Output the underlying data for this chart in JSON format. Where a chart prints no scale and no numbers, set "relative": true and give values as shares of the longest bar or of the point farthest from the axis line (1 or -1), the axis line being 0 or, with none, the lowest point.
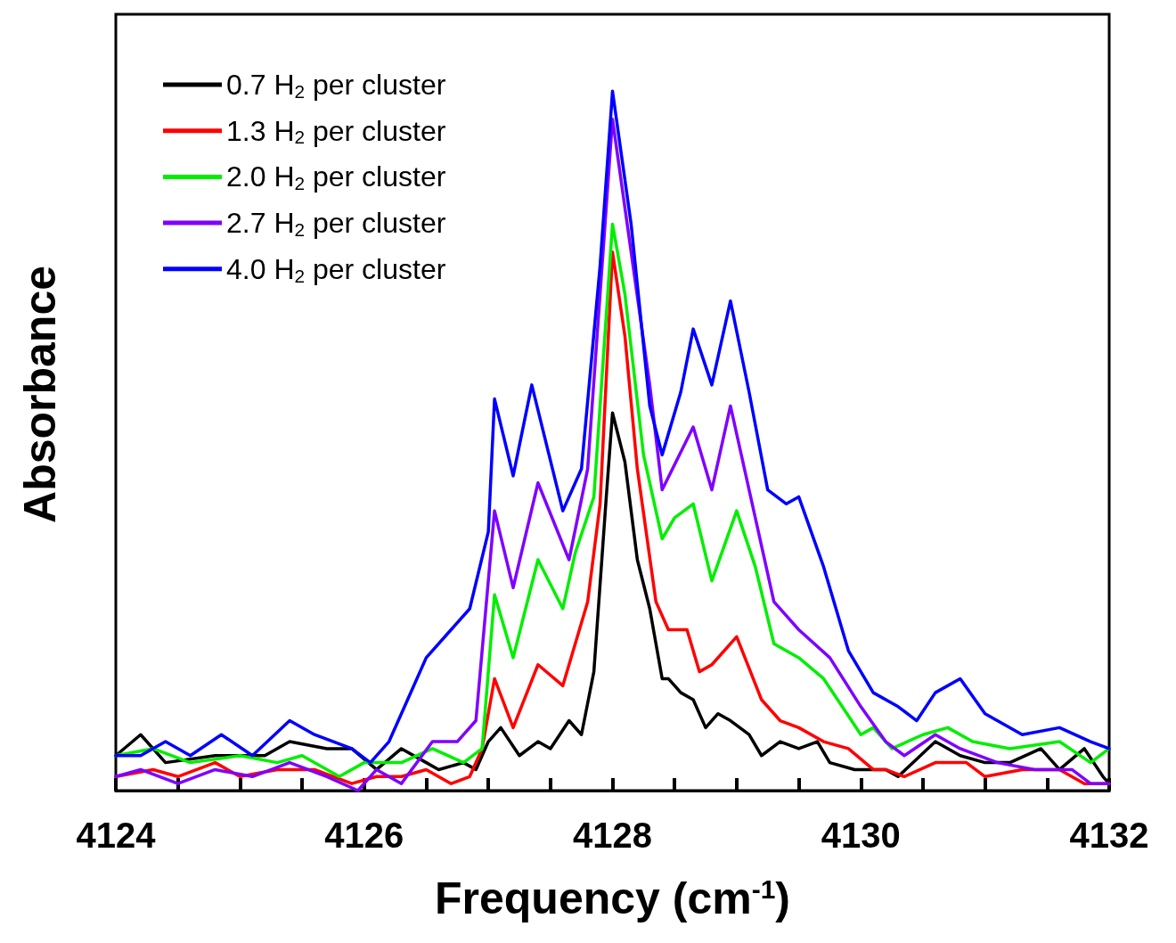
{
  "chart_data": {
    "type": "line",
    "relative": true,
    "xlabel": "Frequency (cm$^{-1}$)",
    "ylabel": "Absorbance",
    "xlim": [
      4124,
      4132
    ],
    "xticks": [
      4124,
      {
        "value": 4124.5,
        "label": null
      },
      {
        "value": 4125,
        "label": null
      },
      {
        "value": 4125.5,
        "label": null
      },
      4126,
      {
        "value": 4126.5,
        "label": null
      },
      {
        "value": 4127,
        "label": null
      },
      {
        "value": 4127.5,
        "label": null
      },
      4128,
      {
        "value": 4128.5,
        "label": null
      },
      {
        "value": 4129,
        "label": null
      },
      {
        "value": 4129.5,
        "label": null
      },
      4130,
      {
        "value": 4130.5,
        "label": null
      },
      {
        "value": 4131,
        "label": null
      },
      {
        "value": 4131.5,
        "label": null
      },
      4132
    ],
    "legend": "top left",
    "grid": false,
    "series": [
      {
        "name": "0.7 H$_{2}$ per cluster",
        "color": "#000000",
        "x": [
          4124,
          4124.2,
          4124.4,
          4124.8,
          4125.2,
          4125.4,
          4125.7,
          4125.9,
          4126.1,
          4126.3,
          4126.5,
          4126.6,
          4126.8,
          4126.9,
          4127.0,
          4127.1,
          4127.25,
          4127.4,
          4127.5,
          4127.65,
          4127.75,
          4127.85,
          4127.95,
          4128.0,
          4128.1,
          4128.2,
          4128.3,
          4128.4,
          4128.45,
          4128.55,
          4128.65,
          4128.75,
          4128.85,
          4128.95,
          4129.1,
          4129.2,
          4129.35,
          4129.5,
          4129.65,
          4129.75,
          4129.95,
          4130.2,
          4130.3,
          4130.6,
          4130.8,
          4131.0,
          4131.2,
          4131.45,
          4131.6,
          4131.8,
          4131.95,
          4132
        ],
        "values": [
          0.05,
          0.08,
          0.04,
          0.05,
          0.05,
          0.07,
          0.06,
          0.06,
          0.03,
          0.06,
          0.04,
          0.03,
          0.04,
          0.03,
          0.07,
          0.09,
          0.05,
          0.07,
          0.06,
          0.1,
          0.08,
          0.17,
          0.42,
          0.54,
          0.47,
          0.33,
          0.26,
          0.16,
          0.16,
          0.14,
          0.13,
          0.09,
          0.11,
          0.1,
          0.08,
          0.05,
          0.07,
          0.06,
          0.07,
          0.04,
          0.03,
          0.03,
          0.02,
          0.07,
          0.05,
          0.04,
          0.04,
          0.06,
          0.03,
          0.06,
          0.02,
          0.01
        ]
      },
      {
        "name": "1.3 H$_{2}$ per cluster",
        "color": "#ff0000",
        "x": [
          4124,
          4124.3,
          4124.5,
          4124.8,
          4125,
          4125.3,
          4125.6,
          4125.9,
          4126.1,
          4126.3,
          4126.5,
          4126.7,
          4126.85,
          4126.95,
          4127.05,
          4127.2,
          4127.4,
          4127.6,
          4127.8,
          4127.9,
          4128.0,
          4128.1,
          4128.2,
          4128.35,
          4128.45,
          4128.6,
          4128.7,
          4128.8,
          4129.0,
          4129.2,
          4129.35,
          4129.5,
          4129.7,
          4129.9,
          4130.1,
          4130.2,
          4130.35,
          4130.6,
          4130.85,
          4131.0,
          4131.3,
          4131.6,
          4131.8,
          4132
        ],
        "values": [
          0.02,
          0.03,
          0.02,
          0.04,
          0.02,
          0.03,
          0.03,
          0.01,
          0.02,
          0.02,
          0.03,
          0.01,
          0.02,
          0.06,
          0.16,
          0.09,
          0.18,
          0.15,
          0.27,
          0.41,
          0.77,
          0.65,
          0.46,
          0.27,
          0.23,
          0.23,
          0.17,
          0.18,
          0.22,
          0.13,
          0.1,
          0.09,
          0.07,
          0.06,
          0.03,
          0.03,
          0.02,
          0.04,
          0.04,
          0.02,
          0.03,
          0.03,
          0.01,
          0.01
        ]
      },
      {
        "name": "2.0 H$_{2}$ per cluster",
        "color": "#00ee00",
        "x": [
          4124,
          4124.3,
          4124.6,
          4125,
          4125.3,
          4125.5,
          4125.8,
          4126.0,
          4126.3,
          4126.55,
          4126.8,
          4126.95,
          4127.05,
          4127.2,
          4127.4,
          4127.6,
          4127.7,
          4127.85,
          4128.0,
          4128.1,
          4128.25,
          4128.4,
          4128.5,
          4128.65,
          4128.8,
          4129.0,
          4129.15,
          4129.3,
          4129.5,
          4129.7,
          4129.85,
          4130.0,
          4130.1,
          4130.25,
          4130.5,
          4130.7,
          4130.9,
          4131.2,
          4131.6,
          4131.85,
          4132
        ],
        "values": [
          0.05,
          0.06,
          0.04,
          0.05,
          0.04,
          0.05,
          0.02,
          0.04,
          0.04,
          0.06,
          0.04,
          0.06,
          0.28,
          0.19,
          0.33,
          0.26,
          0.34,
          0.42,
          0.81,
          0.71,
          0.48,
          0.36,
          0.39,
          0.41,
          0.3,
          0.4,
          0.32,
          0.21,
          0.19,
          0.16,
          0.12,
          0.08,
          0.09,
          0.06,
          0.08,
          0.09,
          0.07,
          0.06,
          0.07,
          0.04,
          0.06
        ]
      },
      {
        "name": "2.7 H$_{2}$ per cluster",
        "color": "#7f00ff",
        "x": [
          4124,
          4124.2,
          4124.5,
          4124.8,
          4125.1,
          4125.4,
          4125.7,
          4125.95,
          4126.1,
          4126.3,
          4126.55,
          4126.75,
          4126.9,
          4127.05,
          4127.2,
          4127.4,
          4127.65,
          4127.8,
          4128.0,
          4128.15,
          4128.3,
          4128.4,
          4128.65,
          4128.8,
          4128.95,
          4129.15,
          4129.3,
          4129.5,
          4129.75,
          4130.0,
          4130.2,
          4130.35,
          4130.6,
          4130.8,
          4131.1,
          4131.4,
          4131.7,
          4131.85,
          4132
        ],
        "values": [
          0.02,
          0.03,
          0.01,
          0.03,
          0.02,
          0.04,
          0.02,
          0.0,
          0.03,
          0.01,
          0.07,
          0.07,
          0.1,
          0.4,
          0.29,
          0.44,
          0.33,
          0.46,
          0.96,
          0.77,
          0.58,
          0.43,
          0.52,
          0.43,
          0.55,
          0.39,
          0.27,
          0.23,
          0.19,
          0.12,
          0.07,
          0.05,
          0.08,
          0.06,
          0.04,
          0.03,
          0.03,
          0.01,
          0.01
        ]
      },
      {
        "name": "4.0 H$_{2}$ per cluster",
        "color": "#0000ff",
        "x": [
          4124,
          4124.2,
          4124.4,
          4124.6,
          4124.85,
          4125.1,
          4125.4,
          4125.6,
          4125.9,
          4126.05,
          4126.2,
          4126.35,
          4126.5,
          4126.7,
          4126.85,
          4127.0,
          4127.05,
          4127.2,
          4127.35,
          4127.6,
          4127.75,
          4127.9,
          4128.0,
          4128.15,
          4128.3,
          4128.4,
          4128.55,
          4128.65,
          4128.8,
          4128.95,
          4129.1,
          4129.25,
          4129.4,
          4129.5,
          4129.7,
          4129.9,
          4130.1,
          4130.3,
          4130.45,
          4130.6,
          4130.8,
          4131.0,
          4131.3,
          4131.6,
          4131.85,
          4132
        ],
        "values": [
          0.05,
          0.05,
          0.07,
          0.05,
          0.08,
          0.05,
          0.1,
          0.08,
          0.06,
          0.04,
          0.07,
          0.13,
          0.19,
          0.23,
          0.26,
          0.37,
          0.56,
          0.45,
          0.58,
          0.4,
          0.46,
          0.75,
          1.0,
          0.81,
          0.55,
          0.48,
          0.57,
          0.66,
          0.58,
          0.7,
          0.57,
          0.43,
          0.41,
          0.42,
          0.32,
          0.2,
          0.14,
          0.12,
          0.1,
          0.14,
          0.16,
          0.11,
          0.08,
          0.09,
          0.07,
          0.06
        ]
      }
    ]
  }
}
